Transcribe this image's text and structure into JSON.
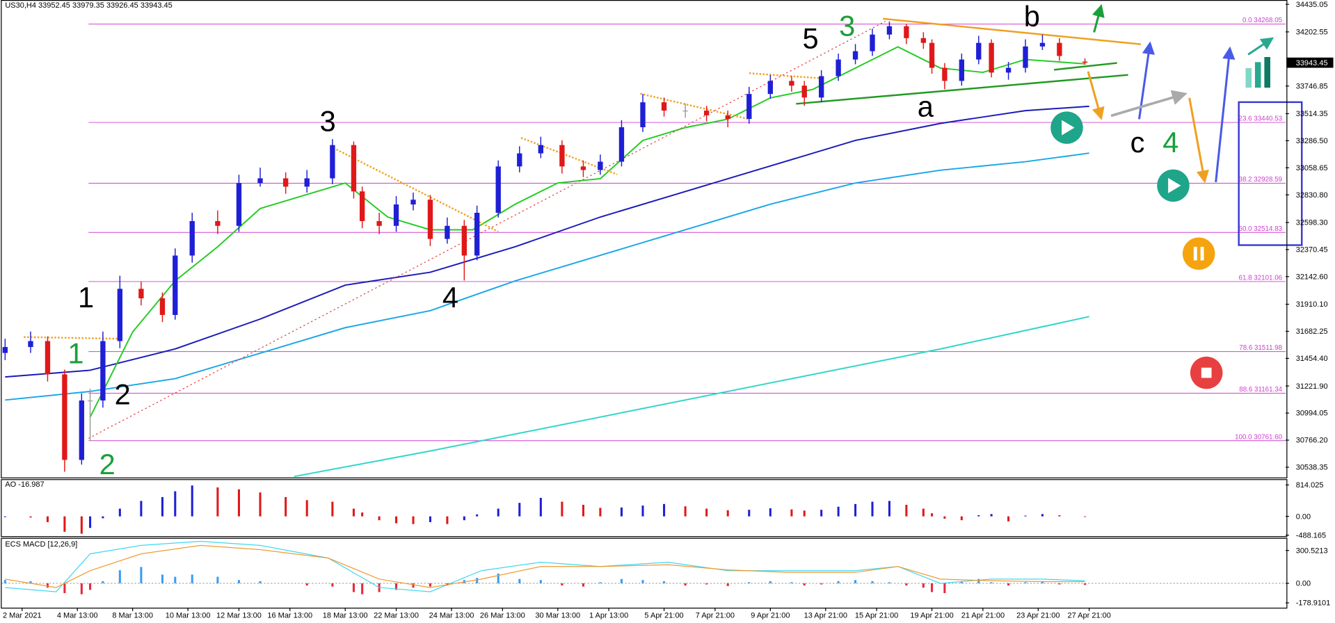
{
  "chart_data": {
    "type": "candlestick",
    "symbol": "US30,H4",
    "up_color": "#1f1fd6",
    "down_color": "#e01818",
    "flat_color": "#9a9a9a",
    "candles": {
      "x": [
        0,
        6,
        10,
        14,
        18,
        20,
        23,
        27,
        32,
        37,
        40,
        44,
        50,
        55,
        60,
        66,
        71,
        77,
        82,
        84,
        88,
        92,
        96,
        100,
        104,
        108,
        111,
        116,
        121,
        126,
        131,
        136,
        140,
        145,
        150,
        155,
        160,
        165,
        170,
        175,
        180,
        185,
        188,
        192,
        196,
        200,
        204,
        208,
        212,
        216,
        218,
        221,
        225,
        229,
        232,
        236,
        240,
        244,
        248,
        254
      ],
      "open": [
        31500,
        31550,
        31600,
        31320,
        30600,
        31100,
        31100,
        31600,
        32040,
        31960,
        31820,
        32320,
        32610,
        32570,
        32930,
        32970,
        32900,
        32970,
        33250,
        32860,
        32610,
        32570,
        32750,
        32790,
        32460,
        32570,
        32320,
        32680,
        33070,
        33180,
        33250,
        33070,
        33040,
        33110,
        33400,
        33610,
        33540,
        33540,
        33500,
        33470,
        33680,
        33790,
        33750,
        33650,
        33830,
        33970,
        34040,
        34180,
        34250,
        34150,
        34110,
        33900,
        33790,
        33970,
        34110,
        33860,
        33900,
        34080,
        34110,
        33952.45
      ],
      "high": [
        31620,
        31680,
        31640,
        31360,
        31160,
        31200,
        31680,
        32150,
        32100,
        32010,
        32380,
        32680,
        32700,
        33000,
        33060,
        33020,
        33040,
        33300,
        33280,
        32900,
        32680,
        32820,
        32850,
        32830,
        32640,
        32620,
        32740,
        33120,
        33240,
        33320,
        33290,
        33120,
        33170,
        33460,
        33680,
        33650,
        33600,
        33580,
        33540,
        33740,
        33840,
        33830,
        33790,
        33880,
        34020,
        34100,
        34230,
        34290,
        34270,
        34200,
        34140,
        33940,
        34020,
        34170,
        34140,
        33950,
        34140,
        34180,
        34150,
        33979.35
      ],
      "low": [
        31440,
        31500,
        31260,
        30500,
        30560,
        30760,
        31040,
        31540,
        31900,
        31760,
        31780,
        32260,
        32500,
        32520,
        32900,
        32840,
        32850,
        32920,
        32800,
        32550,
        32500,
        32520,
        32700,
        32400,
        32420,
        32110,
        32280,
        32640,
        33020,
        33140,
        33010,
        32980,
        33000,
        33070,
        33360,
        33490,
        33480,
        33450,
        33400,
        33430,
        33640,
        33700,
        33580,
        33610,
        33790,
        33930,
        34000,
        34140,
        34100,
        34060,
        33850,
        33720,
        33750,
        33930,
        33820,
        33800,
        33860,
        34050,
        33960,
        33926.45
      ],
      "close": [
        31550,
        31600,
        31320,
        30600,
        31100,
        31100,
        31600,
        32040,
        31960,
        31820,
        32320,
        32610,
        32570,
        32930,
        32970,
        32900,
        32970,
        33250,
        32860,
        32610,
        32570,
        32750,
        32790,
        32460,
        32570,
        32320,
        32680,
        33070,
        33180,
        33250,
        33070,
        33040,
        33110,
        33400,
        33610,
        33540,
        33540,
        33500,
        33470,
        33680,
        33790,
        33750,
        33650,
        33830,
        33970,
        34040,
        34180,
        34250,
        34150,
        34110,
        33900,
        33790,
        33970,
        34110,
        33860,
        33900,
        34080,
        34110,
        34000,
        33943.45
      ]
    },
    "lines": [
      {
        "color": "#1a1ab8",
        "x": [
          0,
          20,
          40,
          60,
          80,
          100,
          120,
          140,
          160,
          180,
          200,
          220,
          240,
          255
        ],
        "values": [
          31298,
          31355,
          31534,
          31785,
          32071,
          32179,
          32394,
          32644,
          32859,
          33074,
          33289,
          33432,
          33540,
          33576
        ]
      },
      {
        "color": "#1aa6e8",
        "x": [
          0,
          20,
          40,
          60,
          80,
          100,
          120,
          140,
          160,
          180,
          200,
          220,
          240,
          255
        ],
        "values": [
          31104,
          31176,
          31284,
          31498,
          31713,
          31856,
          32107,
          32322,
          32537,
          32752,
          32931,
          33038,
          33110,
          33182
        ]
      },
      {
        "color": "#2ed6c8",
        "x": [
          68,
          100,
          140,
          180,
          220,
          255
        ],
        "values": [
          30460,
          30675,
          30961,
          31248,
          31534,
          31806
        ]
      },
      {
        "color": "#22cc22",
        "x": [
          20,
          30,
          40,
          50,
          60,
          70,
          80,
          90,
          100,
          110,
          120,
          130,
          140,
          150,
          160,
          170,
          180,
          190,
          200,
          210,
          220,
          230,
          240,
          254
        ],
        "values": [
          30961,
          31677,
          32107,
          32394,
          32716,
          32823,
          32931,
          32644,
          32537,
          32537,
          32752,
          32931,
          32967,
          33289,
          33397,
          33468,
          33647,
          33719,
          33898,
          34077,
          33898,
          33862,
          33970,
          33934
        ]
      }
    ],
    "xlim": [
      -0.8,
      301.2
    ],
    "ylim": [
      30452,
      34471
    ],
    "yticks": [
      34435.05,
      34202.55,
      33746.85,
      33514.35,
      {
        "value": 33286.5,
        "label": "33286.50"
      },
      33058.65,
      {
        "value": 32830.8,
        "label": "32830.80"
      },
      {
        "value": 32598.3,
        "label": "32598.30"
      },
      32370.45,
      {
        "value": 32142.6,
        "label": "32142.60"
      },
      {
        "value": 31910.1,
        "label": "31910.10"
      },
      31682.25,
      {
        "value": 31454.4,
        "label": "31454.40"
      },
      {
        "value": 31221.9,
        "label": "31221.90"
      },
      30994.05,
      {
        "value": 30766.2,
        "label": "30766.20"
      },
      30538.35
    ],
    "xticks": [
      {
        "value": 4,
        "label": "2 Mar 2021"
      },
      {
        "value": 17,
        "label": "4 Mar 13:00"
      },
      {
        "value": 30,
        "label": "8 Mar 13:00"
      },
      {
        "value": 43,
        "label": "10 Mar 13:00"
      },
      {
        "value": 55,
        "label": "12 Mar 13:00"
      },
      {
        "value": 67,
        "label": "16 Mar 13:00"
      },
      {
        "value": 80,
        "label": "18 Mar 13:00"
      },
      {
        "value": 92,
        "label": "22 Mar 13:00"
      },
      {
        "value": 105,
        "label": "24 Mar 13:00"
      },
      {
        "value": 117,
        "label": "26 Mar 13:00"
      },
      {
        "value": 130,
        "label": "30 Mar 13:00"
      },
      {
        "value": 142,
        "label": "1 Apr 13:00"
      },
      {
        "value": 155,
        "label": "5 Apr 21:00"
      },
      {
        "value": 167,
        "label": "7 Apr 21:00"
      },
      {
        "value": 180,
        "label": "9 Apr 21:00"
      },
      {
        "value": 193,
        "label": "13 Apr 21:00"
      },
      {
        "value": 205,
        "label": "15 Apr 21:00"
      },
      {
        "value": 218,
        "label": "19 Apr 21:00"
      },
      {
        "value": 230,
        "label": "21 Apr 21:00"
      },
      {
        "value": 243,
        "label": "23 Apr 21:00"
      },
      {
        "value": 255,
        "label": "27 Apr 21:00"
      }
    ],
    "fib_levels": [
      {
        "value": 34268.05,
        "label": "0.0 34268.05"
      },
      {
        "value": 33440.53,
        "label": "23.6 33440.53"
      },
      {
        "value": 32928.59,
        "label": "38.2 32928.59"
      },
      {
        "value": 32514.83,
        "label": "50.0 32514.83"
      },
      {
        "value": 32101.06,
        "label": "61.8 32101.06"
      },
      {
        "value": 31511.98,
        "label": "78.6 31511.98"
      },
      {
        "value": 31161.34,
        "label": "88.6 31161.34"
      },
      {
        "value": 30761.6,
        "label": "100.0 30761.60"
      }
    ],
    "fib_color": "#d040d0",
    "annotations": [
      {
        "text": "1"
      },
      {
        "text": "1"
      },
      {
        "text": "2"
      },
      {
        "text": "2"
      },
      {
        "text": "3"
      },
      {
        "text": "4"
      },
      {
        "text": "5"
      },
      {
        "text": "3"
      },
      {
        "text": "b"
      },
      {
        "text": "a"
      },
      {
        "text": "c"
      },
      {
        "text": "4"
      }
    ],
    "ao": {
      "title": "AO",
      "up_color": "#1f1fd6",
      "down_color": "#e01818",
      "values": [
        -20,
        -30,
        -150,
        -400,
        -450,
        -300,
        -50,
        200,
        400,
        500,
        650,
        800,
        750,
        700,
        620,
        500,
        420,
        380,
        200,
        100,
        -100,
        -180,
        -200,
        -150,
        -200,
        -100,
        50,
        200,
        350,
        480,
        380,
        300,
        220,
        230,
        280,
        320,
        260,
        200,
        160,
        170,
        210,
        180,
        150,
        170,
        250,
        320,
        380,
        400,
        300,
        200,
        80,
        -60,
        -100,
        30,
        60,
        -130,
        20,
        60,
        30,
        -16.987
      ],
      "ylim": [
        -514,
        942
      ],
      "yticks": [
        814.025,
        {
          "value": 0,
          "label": "0.00"
        },
        -488.165
      ]
    },
    "macd": {
      "title": "ECS MACD [12,26,9]",
      "pos_color": "#3b9cf0",
      "neg_color": "#e8283c",
      "macd_color": "#40d8f0",
      "signal_color": "#f09a30",
      "hist": [
        30,
        20,
        -40,
        -90,
        -100,
        -60,
        20,
        120,
        150,
        80,
        60,
        80,
        60,
        30,
        20,
        0,
        -20,
        -30,
        -80,
        -100,
        -80,
        -60,
        -40,
        -30,
        -20,
        30,
        50,
        90,
        40,
        30,
        -20,
        -30,
        10,
        40,
        30,
        20,
        -20,
        -10,
        -25,
        10,
        20,
        10,
        -20,
        -10,
        20,
        30,
        20,
        10,
        -20,
        -40,
        -80,
        -90,
        20,
        40,
        10,
        -20,
        10,
        20,
        -10,
        -15
      ],
      "x": [
        0,
        12,
        20,
        32,
        46,
        60,
        76,
        88,
        100,
        112,
        126,
        140,
        156,
        170,
        184,
        200,
        210,
        220,
        232,
        244,
        254
      ],
      "macd_line": [
        -38,
        -77,
        270,
        347,
        385,
        347,
        231,
        -38,
        -77,
        116,
        193,
        154,
        193,
        116,
        116,
        116,
        154,
        0,
        39,
        39,
        23
      ],
      "signal_line": [
        39,
        -38,
        116,
        270,
        347,
        308,
        231,
        39,
        -38,
        39,
        154,
        154,
        170,
        123,
        100,
        100,
        154,
        39,
        23,
        15,
        15
      ],
      "ylim": [
        -223,
        408
      ],
      "yticks": [
        300.5213,
        {
          "value": 0,
          "label": "0.00"
        },
        -178.9101
      ]
    }
  }
}
